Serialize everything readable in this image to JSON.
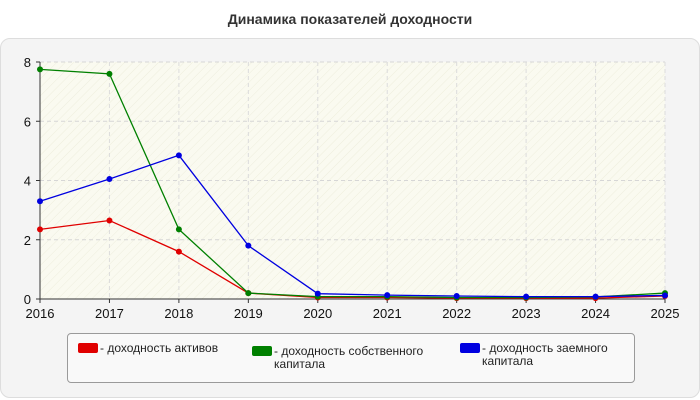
{
  "chart_data": {
    "type": "line",
    "title": "Динамика показателей доходности",
    "categories": [
      "2016",
      "2017",
      "2018",
      "2019",
      "2020",
      "2021",
      "2022",
      "2023",
      "2024",
      "2025"
    ],
    "ylim": [
      0,
      8
    ],
    "yticks": [
      "0",
      "2",
      "4",
      "6",
      "8"
    ],
    "grid": true,
    "legend_position": "bottom",
    "series": [
      {
        "name": "- доходность активов",
        "color": "#e00000",
        "values": [
          2.35,
          2.65,
          1.6,
          0.2,
          0.05,
          0.05,
          0.03,
          0.03,
          0.03,
          0.1
        ]
      },
      {
        "name": "- доходность собственного капитала",
        "color": "#008000",
        "values": [
          7.75,
          7.6,
          2.35,
          0.2,
          0.08,
          0.08,
          0.05,
          0.05,
          0.07,
          0.2
        ]
      },
      {
        "name": "- доходность заемного капитала",
        "color": "#0000e0",
        "values": [
          3.3,
          4.05,
          4.85,
          1.8,
          0.18,
          0.13,
          0.1,
          0.08,
          0.08,
          0.12
        ]
      }
    ]
  }
}
